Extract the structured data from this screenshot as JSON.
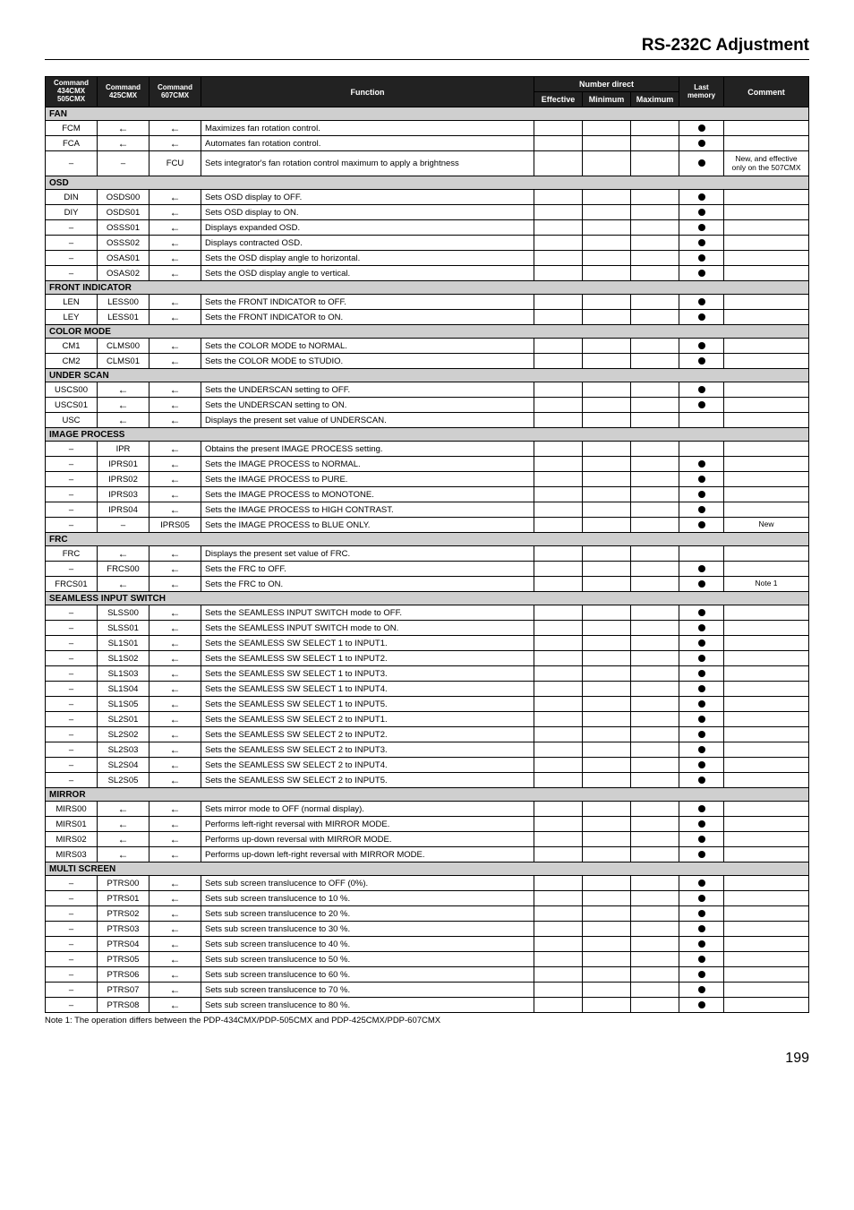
{
  "page_title": "RS-232C Adjustment",
  "page_number": "199",
  "note_text": "Note 1: The operation differs between the PDP-434CMX/PDP-505CMX and PDP-425CMX/PDP-607CMX",
  "arrow": "←",
  "dash": "–",
  "headers": {
    "cmd_line1": "Command",
    "cmd_434": "434CMX",
    "cmd_505": "505CMX",
    "cmd_425": "Command",
    "cmd_425b": "425CMX",
    "cmd_607": "Command",
    "cmd_607b": "607CMX",
    "function": "Function",
    "numdir": "Number direct",
    "eff": "Effective",
    "min": "Minimum",
    "max": "Maximum",
    "last": "Last",
    "memory": "memory",
    "comment": "Comment"
  },
  "sections": [
    {
      "title": "FAN",
      "rows": [
        {
          "c1": "FCM",
          "c2": "←",
          "c3": "←",
          "fn": "Maximizes fan rotation control.",
          "eff": "",
          "min": "",
          "max": "",
          "last": true,
          "com": ""
        },
        {
          "c1": "FCA",
          "c2": "←",
          "c3": "←",
          "fn": "Automates fan rotation control.",
          "eff": "",
          "min": "",
          "max": "",
          "last": true,
          "com": ""
        },
        {
          "c1": "–",
          "c2": "–",
          "c3": "FCU",
          "fn": "Sets integrator's fan rotation control maximum to apply a brightness",
          "eff": "",
          "min": "",
          "max": "",
          "last": true,
          "com": "New, and effective only on the 507CMX",
          "tall": true
        }
      ]
    },
    {
      "title": "OSD",
      "rows": [
        {
          "c1": "DIN",
          "c2": "OSDS00",
          "c3": "←",
          "fn": "Sets OSD display to OFF.",
          "last": true
        },
        {
          "c1": "DIY",
          "c2": "OSDS01",
          "c3": "←",
          "fn": "Sets OSD display to ON.",
          "last": true
        },
        {
          "c1": "–",
          "c2": "OSSS01",
          "c3": "←",
          "fn": "Displays expanded OSD.",
          "last": true
        },
        {
          "c1": "–",
          "c2": "OSSS02",
          "c3": "←",
          "fn": "Displays contracted OSD.",
          "last": true
        },
        {
          "c1": "–",
          "c2": "OSAS01",
          "c3": "←",
          "fn": "Sets the OSD display angle to horizontal.",
          "last": true
        },
        {
          "c1": "–",
          "c2": "OSAS02",
          "c3": "←",
          "fn": "Sets the OSD display angle to vertical.",
          "last": true
        }
      ]
    },
    {
      "title": "FRONT INDICATOR",
      "rows": [
        {
          "c1": "LEN",
          "c2": "LESS00",
          "c3": "←",
          "fn": "Sets the FRONT INDICATOR to OFF.",
          "last": true
        },
        {
          "c1": "LEY",
          "c2": "LESS01",
          "c3": "←",
          "fn": "Sets the FRONT INDICATOR to ON.",
          "last": true
        }
      ]
    },
    {
      "title": "COLOR MODE",
      "rows": [
        {
          "c1": "CM1",
          "c2": "CLMS00",
          "c3": "←",
          "fn": "Sets the COLOR MODE to NORMAL.",
          "last": true
        },
        {
          "c1": "CM2",
          "c2": "CLMS01",
          "c3": "←",
          "fn": "Sets the COLOR MODE to STUDIO.",
          "last": true
        }
      ]
    },
    {
      "title": "UNDER SCAN",
      "rows": [
        {
          "c1": "USCS00",
          "c2": "←",
          "c3": "←",
          "fn": "Sets the UNDERSCAN setting to OFF.",
          "last": true
        },
        {
          "c1": "USCS01",
          "c2": "←",
          "c3": "←",
          "fn": "Sets the UNDERSCAN setting to ON.",
          "last": true
        },
        {
          "c1": "USC",
          "c2": "←",
          "c3": "←",
          "fn": "Displays the present set value of UNDERSCAN.",
          "last": false
        }
      ]
    },
    {
      "title": "IMAGE PROCESS",
      "rows": [
        {
          "c1": "–",
          "c2": "IPR",
          "c3": "←",
          "fn": "Obtains the present IMAGE PROCESS setting.",
          "last": false
        },
        {
          "c1": "–",
          "c2": "IPRS01",
          "c3": "←",
          "fn": "Sets the IMAGE PROCESS to NORMAL.",
          "last": true
        },
        {
          "c1": "–",
          "c2": "IPRS02",
          "c3": "←",
          "fn": "Sets the IMAGE PROCESS to PURE.",
          "last": true
        },
        {
          "c1": "–",
          "c2": "IPRS03",
          "c3": "←",
          "fn": "Sets the IMAGE PROCESS to MONOTONE.",
          "last": true
        },
        {
          "c1": "–",
          "c2": "IPRS04",
          "c3": "←",
          "fn": "Sets the IMAGE PROCESS to HIGH CONTRAST.",
          "last": true
        },
        {
          "c1": "–",
          "c2": "–",
          "c3": "IPRS05",
          "fn": "Sets the IMAGE PROCESS to BLUE ONLY.",
          "last": true,
          "com": "New"
        }
      ]
    },
    {
      "title": "FRC",
      "rows": [
        {
          "c1": "FRC",
          "c2": "←",
          "c3": "←",
          "fn": "Displays the present set value of FRC.",
          "last": false
        },
        {
          "c1": "–",
          "c2": "FRCS00",
          "c3": "←",
          "fn": "Sets the FRC to OFF.",
          "last": true
        },
        {
          "c1": "FRCS01",
          "c2": "←",
          "c3": "←",
          "fn": "Sets the FRC to ON.",
          "last": true,
          "com": "Note 1"
        }
      ]
    },
    {
      "title": "SEAMLESS INPUT SWITCH",
      "rows": [
        {
          "c1": "–",
          "c2": "SLSS00",
          "c3": "←",
          "fn": "Sets the SEAMLESS INPUT SWITCH mode to OFF.",
          "last": true
        },
        {
          "c1": "–",
          "c2": "SLSS01",
          "c3": "←",
          "fn": "Sets the SEAMLESS INPUT SWITCH mode to ON.",
          "last": true
        },
        {
          "c1": "–",
          "c2": "SL1S01",
          "c3": "←",
          "fn": "Sets the SEAMLESS SW SELECT 1 to INPUT1.",
          "last": true
        },
        {
          "c1": "–",
          "c2": "SL1S02",
          "c3": "←",
          "fn": "Sets the SEAMLESS SW SELECT 1 to INPUT2.",
          "last": true
        },
        {
          "c1": "–",
          "c2": "SL1S03",
          "c3": "←",
          "fn": "Sets the SEAMLESS SW SELECT 1 to INPUT3.",
          "last": true
        },
        {
          "c1": "–",
          "c2": "SL1S04",
          "c3": "←",
          "fn": "Sets the SEAMLESS SW SELECT 1 to INPUT4.",
          "last": true
        },
        {
          "c1": "–",
          "c2": "SL1S05",
          "c3": "←",
          "fn": "Sets the SEAMLESS SW SELECT 1 to INPUT5.",
          "last": true
        },
        {
          "c1": "–",
          "c2": "SL2S01",
          "c3": "←",
          "fn": "Sets the SEAMLESS SW SELECT 2 to INPUT1.",
          "last": true
        },
        {
          "c1": "–",
          "c2": "SL2S02",
          "c3": "←",
          "fn": "Sets the SEAMLESS SW SELECT 2 to INPUT2.",
          "last": true
        },
        {
          "c1": "–",
          "c2": "SL2S03",
          "c3": "←",
          "fn": "Sets the SEAMLESS SW SELECT 2 to INPUT3.",
          "last": true
        },
        {
          "c1": "–",
          "c2": "SL2S04",
          "c3": "←",
          "fn": "Sets the SEAMLESS SW SELECT 2 to INPUT4.",
          "last": true
        },
        {
          "c1": "–",
          "c2": "SL2S05",
          "c3": "←",
          "fn": "Sets the SEAMLESS SW SELECT 2 to INPUT5.",
          "last": true
        }
      ]
    },
    {
      "title": "MIRROR",
      "rows": [
        {
          "c1": "MIRS00",
          "c2": "←",
          "c3": "←",
          "fn": "Sets mirror mode to OFF (normal display).",
          "last": true
        },
        {
          "c1": "MIRS01",
          "c2": "←",
          "c3": "←",
          "fn": "Performs left-right reversal with MIRROR MODE.",
          "last": true
        },
        {
          "c1": "MIRS02",
          "c2": "←",
          "c3": "←",
          "fn": "Performs up-down reversal with MIRROR MODE.",
          "last": true
        },
        {
          "c1": "MIRS03",
          "c2": "←",
          "c3": "←",
          "fn": "Performs up-down left-right reversal with MIRROR MODE.",
          "last": true
        }
      ]
    },
    {
      "title": "MULTI SCREEN",
      "rows": [
        {
          "c1": "–",
          "c2": "PTRS00",
          "c3": "←",
          "fn": "Sets sub screen translucence to OFF (0%).",
          "last": true
        },
        {
          "c1": "–",
          "c2": "PTRS01",
          "c3": "←",
          "fn": "Sets sub screen translucence to 10 %.",
          "last": true
        },
        {
          "c1": "–",
          "c2": "PTRS02",
          "c3": "←",
          "fn": "Sets sub screen translucence to 20 %.",
          "last": true
        },
        {
          "c1": "–",
          "c2": "PTRS03",
          "c3": "←",
          "fn": "Sets sub screen translucence to 30 %.",
          "last": true
        },
        {
          "c1": "–",
          "c2": "PTRS04",
          "c3": "←",
          "fn": "Sets sub screen translucence to 40 %.",
          "last": true
        },
        {
          "c1": "–",
          "c2": "PTRS05",
          "c3": "←",
          "fn": "Sets sub screen translucence to 50 %.",
          "last": true
        },
        {
          "c1": "–",
          "c2": "PTRS06",
          "c3": "←",
          "fn": "Sets sub screen translucence to 60 %.",
          "last": true
        },
        {
          "c1": "–",
          "c2": "PTRS07",
          "c3": "←",
          "fn": "Sets sub screen translucence to 70 %.",
          "last": true
        },
        {
          "c1": "–",
          "c2": "PTRS08",
          "c3": "←",
          "fn": "Sets sub screen translucence to 80 %.",
          "last": true
        }
      ]
    }
  ]
}
